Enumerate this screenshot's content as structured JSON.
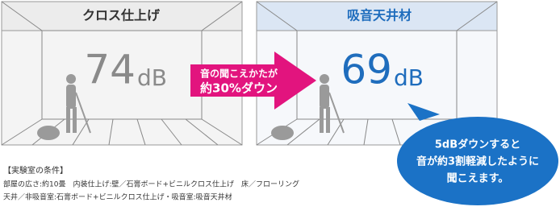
{
  "left_panel": {
    "title": "クロス仕上げ",
    "number": "74",
    "unit": "dB"
  },
  "right_panel": {
    "title": "吸音天井材",
    "number": "69",
    "unit": "dB"
  },
  "arrow": {
    "line1": "音の聞こえかたが",
    "line2": "約30%ダウン"
  },
  "bubble": {
    "lines": [
      "5dBダウンすると",
      "音が約3割軽減したように",
      "聞こえます。"
    ]
  },
  "conditions": {
    "heading": "【実験室の条件】",
    "lines": [
      "部屋の広さ:約10畳　内装仕上げ:壁／石膏ボード+ビニルクロス仕上げ　床／フローリング",
      "天井／非吸音室:石膏ボード+ビニルクロス仕上げ・吸音室:吸音天井材"
    ]
  }
}
